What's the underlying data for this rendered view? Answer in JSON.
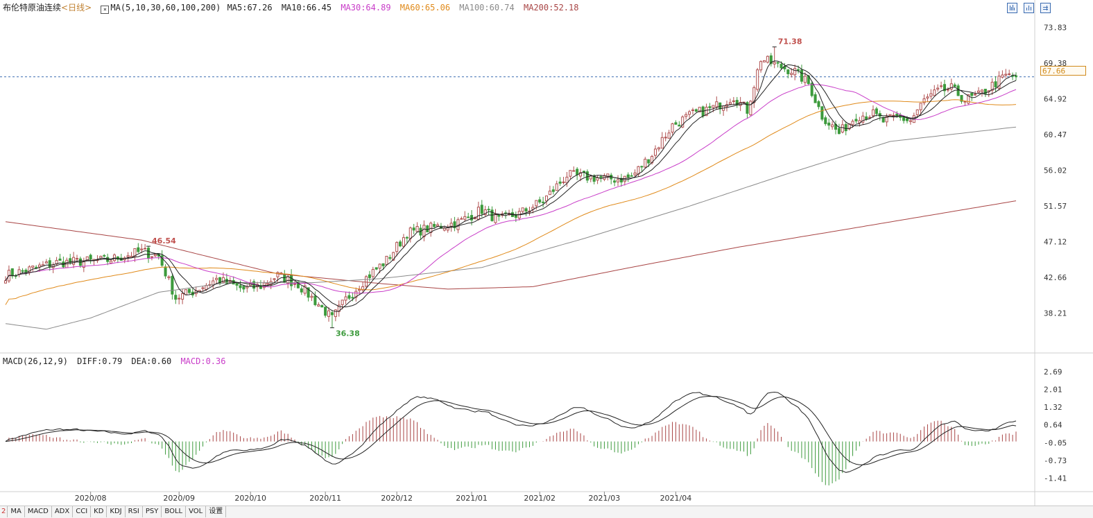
{
  "header": {
    "title": "布伦特原油连续",
    "period": "<日线>",
    "ma_label": "MA(5,10,30,60,100,200)",
    "ma5": "MA5:67.26",
    "ma10": "MA10:66.45",
    "ma30": "MA30:64.89",
    "ma60": "MA60:65.06",
    "ma100": "MA100:60.74",
    "ma200": "MA200:52.18"
  },
  "macd_header": {
    "label": "MACD(26,12,9)",
    "diff": "DIFF:0.79",
    "dea": "DEA:0.60",
    "macd": "MACD:0.36"
  },
  "tabs": [
    "2",
    "MA",
    "MACD",
    "ADX",
    "CCI",
    "KD",
    "KDJ",
    "RSI",
    "PSY",
    "BOLL",
    "VOL",
    "设置"
  ],
  "colors": {
    "up": "#b05050",
    "down": "#3c9a3c",
    "ma5": "#222222",
    "ma10": "#222222",
    "ma30": "#c83cc8",
    "ma60": "#e08a1a",
    "ma100": "#8a8a8a",
    "ma200": "#a84444",
    "macd_pos": "#a84444",
    "macd_neg": "#3c9a3c",
    "grid": "#dddddd",
    "last_price_line": "#3a6bb0"
  },
  "chart_data": [
    {
      "type": "candlestick",
      "title": "布伦特原油连续",
      "ylim": [
        33.5,
        75.5
      ],
      "y_ticks": [
        "73.83",
        "69.38",
        "64.92",
        "60.47",
        "56.02",
        "51.57",
        "47.12",
        "42.66",
        "38.21"
      ],
      "x_labels": [
        "2020/08",
        "2020/09",
        "2020/10",
        "2020/11",
        "2020/12",
        "2021/01",
        "2021/02",
        "2021/03",
        "2021/04"
      ],
      "last_price": "67.66",
      "annotations": {
        "high": "71.38",
        "low": "36.38",
        "local_high": "46.54"
      },
      "close_anchors": [
        [
          0,
          42.9
        ],
        [
          15,
          44.5
        ],
        [
          30,
          44.8
        ],
        [
          40,
          45.9
        ],
        [
          45,
          45.3
        ],
        [
          48,
          42.2
        ],
        [
          50,
          40.1
        ],
        [
          55,
          40.9
        ],
        [
          62,
          42.4
        ],
        [
          70,
          41.2
        ],
        [
          75,
          41.6
        ],
        [
          80,
          42.9
        ],
        [
          86,
          41.8
        ],
        [
          92,
          39.3
        ],
        [
          96,
          37.5
        ],
        [
          100,
          39.9
        ],
        [
          106,
          42.6
        ],
        [
          112,
          44.8
        ],
        [
          118,
          48.2
        ],
        [
          126,
          48.9
        ],
        [
          133,
          49.5
        ],
        [
          140,
          51.1
        ],
        [
          145,
          49.8
        ],
        [
          151,
          50.6
        ],
        [
          158,
          52.2
        ],
        [
          165,
          55.4
        ],
        [
          170,
          55.2
        ],
        [
          176,
          55.0
        ],
        [
          180,
          54.9
        ],
        [
          184,
          55.2
        ],
        [
          190,
          58.0
        ],
        [
          196,
          61.6
        ],
        [
          202,
          63.0
        ],
        [
          208,
          63.8
        ],
        [
          214,
          65.2
        ],
        [
          218,
          63.5
        ],
        [
          222,
          69.9
        ],
        [
          228,
          68.9
        ],
        [
          232,
          68.3
        ],
        [
          236,
          66.8
        ],
        [
          240,
          62.8
        ],
        [
          245,
          60.6
        ],
        [
          250,
          62.8
        ],
        [
          255,
          63.0
        ],
        [
          258,
          62.1
        ],
        [
          262,
          62.6
        ],
        [
          266,
          62.2
        ],
        [
          270,
          64.7
        ],
        [
          274,
          65.8
        ],
        [
          278,
          66.2
        ],
        [
          282,
          64.8
        ],
        [
          286,
          65.3
        ],
        [
          290,
          66.6
        ],
        [
          294,
          67.8
        ],
        [
          297,
          67.66
        ]
      ],
      "ma100_anchors": [
        [
          0,
          36.9
        ],
        [
          12,
          36.2
        ],
        [
          25,
          37.6
        ],
        [
          45,
          40.8
        ],
        [
          65,
          42.0
        ],
        [
          90,
          42.0
        ],
        [
          110,
          42.5
        ],
        [
          140,
          43.9
        ],
        [
          170,
          47.5
        ],
        [
          200,
          51.4
        ],
        [
          230,
          55.6
        ],
        [
          260,
          59.6
        ],
        [
          297,
          61.4
        ]
      ],
      "ma200_anchors": [
        [
          0,
          49.6
        ],
        [
          40,
          47.3
        ],
        [
          80,
          43.1
        ],
        [
          110,
          41.9
        ],
        [
          130,
          41.2
        ],
        [
          155,
          41.5
        ],
        [
          185,
          44.0
        ],
        [
          215,
          46.4
        ],
        [
          245,
          48.5
        ],
        [
          297,
          52.2
        ]
      ]
    },
    {
      "type": "macd",
      "title": "MACD(26,12,9)",
      "ylim": [
        -1.85,
        2.95
      ],
      "y_ticks": [
        "2.69",
        "2.01",
        "1.32",
        "0.64",
        "-0.05",
        "-0.73",
        "-1.41"
      ],
      "diff": 0.79,
      "dea": 0.6,
      "macd": 0.36
    }
  ]
}
